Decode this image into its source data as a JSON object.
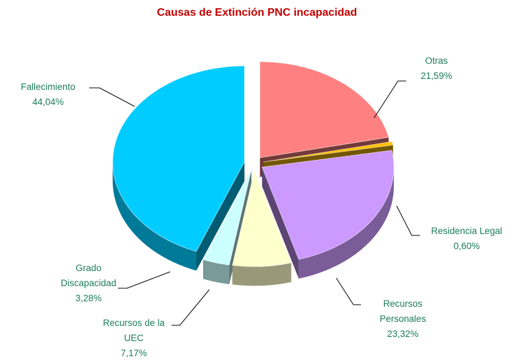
{
  "chart_data": {
    "type": "pie",
    "title": "Causas de Extinción PNC incapacidad",
    "categories": [
      "Otras",
      "Residencia Legal",
      "Recursos Personales",
      "Recursos de la UEC",
      "Grado Discapacidad",
      "Fallecimiento"
    ],
    "values": [
      21.59,
      0.6,
      23.32,
      7.17,
      3.28,
      44.04
    ],
    "value_labels": [
      "21,59%",
      "0,60%",
      "23,32%",
      "7,17%",
      "3,28%",
      "44,04%"
    ],
    "colors": [
      "#ff8080",
      "#ffc000",
      "#cc99ff",
      "#ffffcc",
      "#ccffff",
      "#00ccff"
    ]
  }
}
